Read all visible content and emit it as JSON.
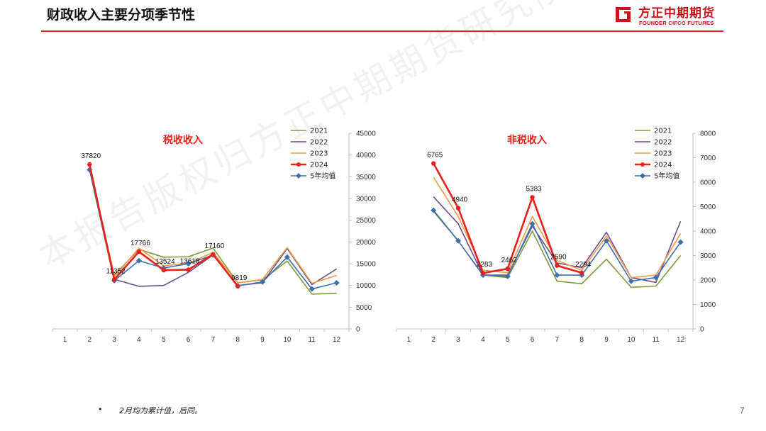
{
  "page": {
    "title": "财政收入主要分项季节性",
    "logo_name": "方正中期期货",
    "logo_en": "FOUNDER CIFCO FUTURES",
    "footnote_bullet": "•",
    "footnote": "2月均为累计值，后同。",
    "page_number": "7",
    "watermark": "本报告版权归方正中期期货研究院所有"
  },
  "colors": {
    "accent": "#d9261c",
    "2021": "#7f9a3c",
    "2022": "#6b4f8f",
    "2023": "#f29a4a",
    "2024": "#e8221a",
    "avg5": "#3d6fad",
    "chart_title": "#e8221a"
  },
  "chart_data": [
    {
      "type": "line",
      "title": "税收收入",
      "categories": [
        "1",
        "2",
        "3",
        "4",
        "5",
        "6",
        "7",
        "8",
        "9",
        "10",
        "11",
        "12"
      ],
      "ylim": [
        0,
        45000
      ],
      "yticks": [
        0,
        5000,
        10000,
        15000,
        20000,
        25000,
        30000,
        35000,
        40000,
        45000
      ],
      "y_axis_side": "right",
      "legend_position": "top-right",
      "series": [
        {
          "name": "2021",
          "key": "2021",
          "values": [
            null,
            37300,
            12400,
            18300,
            16500,
            16600,
            18600,
            10600,
            11300,
            15600,
            8000,
            8200
          ]
        },
        {
          "name": "2022",
          "key": "2022",
          "values": [
            null,
            37600,
            11400,
            9800,
            10000,
            13000,
            17000,
            10000,
            10600,
            18500,
            10200,
            13800
          ]
        },
        {
          "name": "2023",
          "key": "2023",
          "values": [
            null,
            37500,
            12000,
            18600,
            14500,
            15100,
            17600,
            10600,
            11400,
            18700,
            10500,
            12300
          ]
        },
        {
          "name": "2024",
          "key": "2024",
          "marker": "circle",
          "values": [
            null,
            37820,
            11352,
            17766,
            13524,
            13618,
            17160,
            9819,
            null,
            null,
            null,
            null
          ]
        },
        {
          "name": "5年均值",
          "key": "avg5",
          "marker": "diamond",
          "values": [
            null,
            36600,
            11100,
            15700,
            14000,
            15000,
            17000,
            9900,
            10800,
            16500,
            9200,
            10600
          ]
        }
      ],
      "data_labels": [
        {
          "index": 1,
          "value": "37820"
        },
        {
          "index": 2,
          "value": "11352"
        },
        {
          "index": 3,
          "value": "17766"
        },
        {
          "index": 4,
          "value": "13524"
        },
        {
          "index": 5,
          "value": "13618"
        },
        {
          "index": 6,
          "value": "17160"
        },
        {
          "index": 7,
          "value": "9819"
        }
      ]
    },
    {
      "type": "line",
      "title": "非税收入",
      "categories": [
        "1",
        "2",
        "3",
        "4",
        "5",
        "6",
        "7",
        "8",
        "9",
        "10",
        "11",
        "12"
      ],
      "ylim": [
        0,
        8000
      ],
      "yticks": [
        0,
        1000,
        2000,
        3000,
        4000,
        5000,
        6000,
        7000,
        8000
      ],
      "y_axis_side": "right",
      "legend_position": "top-right",
      "series": [
        {
          "name": "2021",
          "key": "2021",
          "values": [
            null,
            4800,
            3600,
            2200,
            2100,
            4000,
            1950,
            1850,
            2850,
            1700,
            1750,
            3000
          ]
        },
        {
          "name": "2022",
          "key": "2022",
          "values": [
            null,
            5400,
            4300,
            2200,
            2200,
            4200,
            2700,
            2500,
            3950,
            2100,
            1900,
            4400
          ]
        },
        {
          "name": "2023",
          "key": "2023",
          "values": [
            null,
            6200,
            4600,
            2400,
            2300,
            4600,
            2800,
            2400,
            3800,
            2100,
            2200,
            3900
          ]
        },
        {
          "name": "2024",
          "key": "2024",
          "marker": "circle",
          "values": [
            null,
            6765,
            4940,
            2283,
            2462,
            5383,
            2590,
            2294,
            null,
            null,
            null,
            null
          ]
        },
        {
          "name": "5年均值",
          "key": "avg5",
          "marker": "diamond",
          "values": [
            null,
            4850,
            3600,
            2200,
            2150,
            4300,
            2200,
            2200,
            3600,
            1950,
            2100,
            3550
          ]
        }
      ],
      "data_labels": [
        {
          "index": 1,
          "value": "6765"
        },
        {
          "index": 2,
          "value": "4940"
        },
        {
          "index": 3,
          "value": "2283"
        },
        {
          "index": 4,
          "value": "2462"
        },
        {
          "index": 5,
          "value": "5383"
        },
        {
          "index": 6,
          "value": "2590"
        },
        {
          "index": 7,
          "value": "2294"
        }
      ]
    }
  ]
}
